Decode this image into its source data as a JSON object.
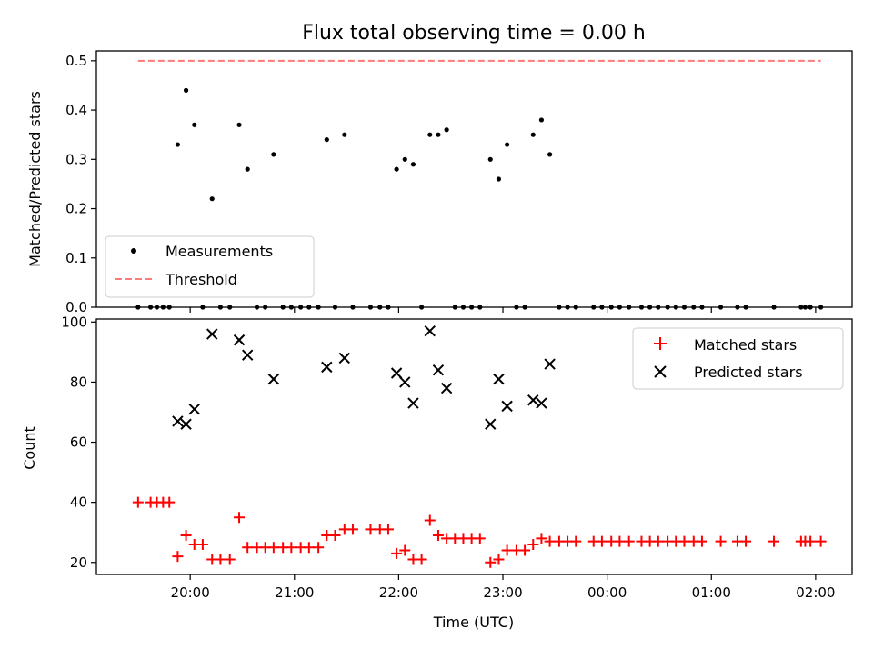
{
  "chart_data": [
    {
      "type": "scatter",
      "title": "Flux total observing time = 0.00 h",
      "xlabel": "",
      "ylabel": "Matched/Predicted stars",
      "xlim": [
        19.1,
        26.35
      ],
      "ylim": [
        0,
        0.52
      ],
      "yticks": [
        0.0,
        0.1,
        0.2,
        0.3,
        0.4,
        0.5
      ],
      "yticklabels": [
        "0.0",
        "0.1",
        "0.2",
        "0.3",
        "0.4",
        "0.5"
      ],
      "legend_position": "lower-left",
      "series": [
        {
          "name": "Measurements",
          "marker": "dot",
          "color": "#000000",
          "x": [
            19.5,
            19.62,
            19.68,
            19.74,
            19.8,
            19.88,
            19.96,
            20.04,
            20.12,
            20.21,
            20.29,
            20.38,
            20.47,
            20.55,
            20.64,
            20.72,
            20.8,
            20.89,
            20.97,
            21.06,
            21.14,
            21.23,
            21.31,
            21.39,
            21.48,
            21.56,
            21.73,
            21.82,
            21.9,
            21.98,
            22.06,
            22.14,
            22.22,
            22.3,
            22.38,
            22.46,
            22.54,
            22.62,
            22.7,
            22.78,
            22.88,
            22.96,
            23.04,
            23.13,
            23.21,
            23.29,
            23.37,
            23.45,
            23.54,
            23.62,
            23.7,
            23.87,
            23.95,
            24.04,
            24.12,
            24.21,
            24.33,
            24.41,
            24.49,
            24.58,
            24.66,
            24.74,
            24.83,
            24.91,
            25.09,
            25.25,
            25.33,
            25.6,
            25.86,
            25.9,
            25.95,
            26.05
          ],
          "y": [
            0,
            0,
            0,
            0,
            0,
            0.33,
            0.44,
            0.37,
            0,
            0.22,
            0,
            0,
            0.37,
            0.28,
            0,
            0,
            0.31,
            0,
            0,
            0,
            0,
            0,
            0.34,
            0,
            0.35,
            0,
            0,
            0,
            0,
            0.28,
            0.3,
            0.29,
            0,
            0.35,
            0.35,
            0.36,
            0,
            0,
            0,
            0,
            0.3,
            0.26,
            0.33,
            0,
            0,
            0.35,
            0.38,
            0.31,
            0,
            0,
            0,
            0,
            0,
            0,
            0,
            0,
            0,
            0,
            0,
            0,
            0,
            0,
            0,
            0,
            0,
            0,
            0,
            0,
            0,
            0,
            0,
            0
          ]
        },
        {
          "name": "Threshold",
          "style": "dashed",
          "color": "#ff7a7a",
          "x": [
            19.5,
            26.05
          ],
          "y": [
            0.5,
            0.5
          ]
        }
      ]
    },
    {
      "type": "scatter",
      "title": "",
      "xlabel": "Time (UTC)",
      "ylabel": "Count",
      "xlim": [
        19.1,
        26.35
      ],
      "ylim": [
        16,
        101
      ],
      "yticks": [
        20,
        40,
        60,
        80,
        100
      ],
      "yticklabels": [
        "20",
        "40",
        "60",
        "80",
        "100"
      ],
      "xticks": [
        20,
        21,
        22,
        23,
        24,
        25,
        26
      ],
      "xticklabels": [
        "20:00",
        "21:00",
        "22:00",
        "23:00",
        "00:00",
        "01:00",
        "02:00"
      ],
      "legend_position": "upper-right",
      "series": [
        {
          "name": "Matched stars",
          "marker": "plus",
          "color": "#ff0000",
          "x": [
            19.5,
            19.62,
            19.68,
            19.74,
            19.8,
            19.88,
            19.96,
            20.04,
            20.12,
            20.21,
            20.29,
            20.38,
            20.47,
            20.55,
            20.64,
            20.72,
            20.8,
            20.89,
            20.97,
            21.06,
            21.14,
            21.23,
            21.31,
            21.39,
            21.48,
            21.56,
            21.73,
            21.82,
            21.9,
            21.98,
            22.06,
            22.14,
            22.22,
            22.3,
            22.38,
            22.46,
            22.54,
            22.62,
            22.7,
            22.78,
            22.88,
            22.96,
            23.04,
            23.13,
            23.21,
            23.29,
            23.37,
            23.45,
            23.54,
            23.62,
            23.7,
            23.87,
            23.95,
            24.04,
            24.12,
            24.21,
            24.33,
            24.41,
            24.49,
            24.58,
            24.66,
            24.74,
            24.83,
            24.91,
            25.09,
            25.25,
            25.33,
            25.6,
            25.86,
            25.9,
            25.95,
            26.05
          ],
          "y": [
            40,
            40,
            40,
            40,
            40,
            22,
            29,
            26,
            26,
            21,
            21,
            21,
            35,
            25,
            25,
            25,
            25,
            25,
            25,
            25,
            25,
            25,
            29,
            29,
            31,
            31,
            31,
            31,
            31,
            23,
            24,
            21,
            21,
            34,
            29,
            28,
            28,
            28,
            28,
            28,
            20,
            21,
            24,
            24,
            24,
            26,
            28,
            27,
            27,
            27,
            27,
            27,
            27,
            27,
            27,
            27,
            27,
            27,
            27,
            27,
            27,
            27,
            27,
            27,
            27,
            27,
            27,
            27,
            27,
            27,
            27,
            27
          ]
        },
        {
          "name": "Predicted stars",
          "marker": "x",
          "color": "#000000",
          "x": [
            19.88,
            19.96,
            20.04,
            20.21,
            20.47,
            20.55,
            20.8,
            21.31,
            21.48,
            21.98,
            22.06,
            22.14,
            22.3,
            22.38,
            22.46,
            22.88,
            22.96,
            23.04,
            23.29,
            23.37,
            23.45
          ],
          "y": [
            67,
            66,
            71,
            96,
            94,
            89,
            81,
            85,
            88,
            83,
            80,
            73,
            97,
            84,
            78,
            66,
            81,
            72,
            74,
            73,
            86
          ]
        }
      ]
    }
  ]
}
